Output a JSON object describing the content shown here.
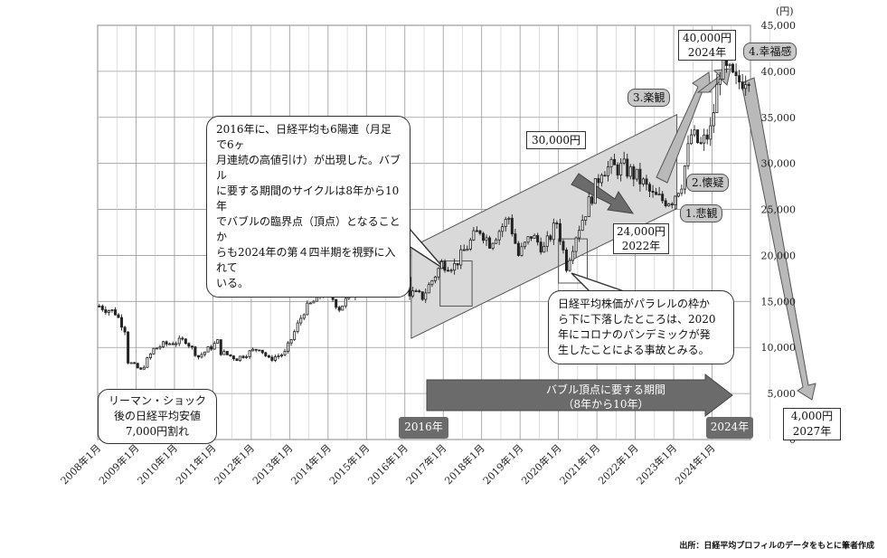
{
  "chart_data": {
    "type": "candlestick",
    "y_unit": "(円)",
    "ylim": [
      0,
      45000
    ],
    "y_ticks": [
      "0",
      "5,000",
      "10,000",
      "15,000",
      "20,000",
      "25,000",
      "30,000",
      "35,000",
      "40,000",
      "45,000"
    ],
    "y_tick_values": [
      0,
      5000,
      10000,
      15000,
      20000,
      25000,
      30000,
      35000,
      40000,
      45000
    ],
    "x_tick_labels": [
      "2008年1月",
      "2009年1月",
      "2010年1月",
      "2011年1月",
      "2012年1月",
      "2013年1月",
      "2014年1月",
      "2015年1月",
      "2016年1月",
      "2017年1月",
      "2018年1月",
      "2019年1月",
      "2020年1月",
      "2021年1月",
      "2022年1月",
      "2023年1月",
      "2024年1月"
    ],
    "x_start_year": 2008,
    "series": [
      {
        "anchors": [
          [
            "2008-01",
            14500
          ],
          [
            "2008-06",
            13800
          ],
          [
            "2008-09",
            12000
          ],
          [
            "2008-10",
            8500
          ],
          [
            "2009-02",
            7500
          ],
          [
            "2009-06",
            9800
          ],
          [
            "2009-09",
            10300
          ],
          [
            "2010-04",
            10800
          ],
          [
            "2010-08",
            9000
          ],
          [
            "2011-02",
            10600
          ],
          [
            "2011-03",
            9500
          ],
          [
            "2011-08",
            8800
          ],
          [
            "2012-03",
            10000
          ],
          [
            "2012-06",
            8700
          ],
          [
            "2012-11",
            9400
          ],
          [
            "2013-01",
            10900
          ],
          [
            "2013-05",
            14000
          ],
          [
            "2013-12",
            16300
          ],
          [
            "2014-04",
            14300
          ],
          [
            "2014-12",
            17400
          ],
          [
            "2015-04",
            19500
          ],
          [
            "2015-06",
            20500
          ],
          [
            "2015-09",
            17400
          ],
          [
            "2015-12",
            19000
          ],
          [
            "2016-02",
            16000
          ],
          [
            "2016-06",
            15500
          ],
          [
            "2016-12",
            19100
          ],
          [
            "2017-04",
            18900
          ],
          [
            "2017-10",
            22000
          ],
          [
            "2017-12",
            22800
          ],
          [
            "2018-03",
            21400
          ],
          [
            "2018-09",
            24100
          ],
          [
            "2018-12",
            20000
          ],
          [
            "2019-04",
            22200
          ],
          [
            "2019-08",
            20700
          ],
          [
            "2019-12",
            23600
          ],
          [
            "2020-03",
            18900
          ],
          [
            "2020-06",
            22300
          ],
          [
            "2020-12",
            27400
          ],
          [
            "2021-02",
            29500
          ],
          [
            "2021-09",
            29500
          ],
          [
            "2021-12",
            28800
          ],
          [
            "2022-03",
            27800
          ],
          [
            "2022-06",
            26400
          ],
          [
            "2022-09",
            26000
          ],
          [
            "2022-12",
            26100
          ],
          [
            "2023-03",
            28000
          ],
          [
            "2023-06",
            33100
          ],
          [
            "2023-09",
            31900
          ],
          [
            "2023-12",
            33500
          ],
          [
            "2024-03",
            40300
          ],
          [
            "2024-06",
            39600
          ],
          [
            "2024-08",
            38600
          ],
          [
            "2024-12",
            39900
          ]
        ]
      }
    ],
    "annotations": {
      "callout_main": "2016年に、日経平均も6陽連（月足で6ヶ月連続の高値引け）が出現した。バブルに要する期間のサイクルは8年から10年でバブルの臨界点（頂点）となることからも2024年の第４四半期を視野に入れている。",
      "callout_main_lines": [
        "2016年に、日経平均も6陽連（月足で6ヶ",
        "月連続の高値引け）が出現した。バブル",
        "に要する期間のサイクルは8年から10年",
        "でバブルの臨界点（頂点）となることか",
        "らも2024年の第４四半期を視野に入れて",
        "いる。"
      ],
      "callout_covid_lines": [
        "日経平均株価がパラレルの枠か",
        "ら下に下落したところは、2020",
        "年にコロナのパンデミックが発",
        "生したことによる事故とみる。"
      ],
      "lehman_lines": [
        "リーマン・ショック",
        "後の日経平均安値",
        "7,000円割れ"
      ],
      "label_30000": "30,000円",
      "label_24000_lines": [
        "24,000円",
        "2022年"
      ],
      "label_40000_lines": [
        "40,000円",
        "2024年"
      ],
      "label_4000_lines": [
        "4,000円",
        "2027年"
      ],
      "stage_1": "1.悲観",
      "stage_2": "2.懐疑",
      "stage_3": "3.楽観",
      "stage_4": "4.幸福感",
      "period_arrow_lines": [
        "バブル頂点に要する期間",
        "（8年から10年）"
      ],
      "year_2016": "2016年",
      "year_2024": "2024年"
    }
  },
  "source": "出所：日経平均プロフィルのデータをもとに筆者作成",
  "colors": {
    "band": "#d9d9d9",
    "arrow_dark": "#6b6b6b",
    "arrow_light": "#b9b9b9",
    "pill": "#c8c8c8",
    "candle": "#222222"
  }
}
